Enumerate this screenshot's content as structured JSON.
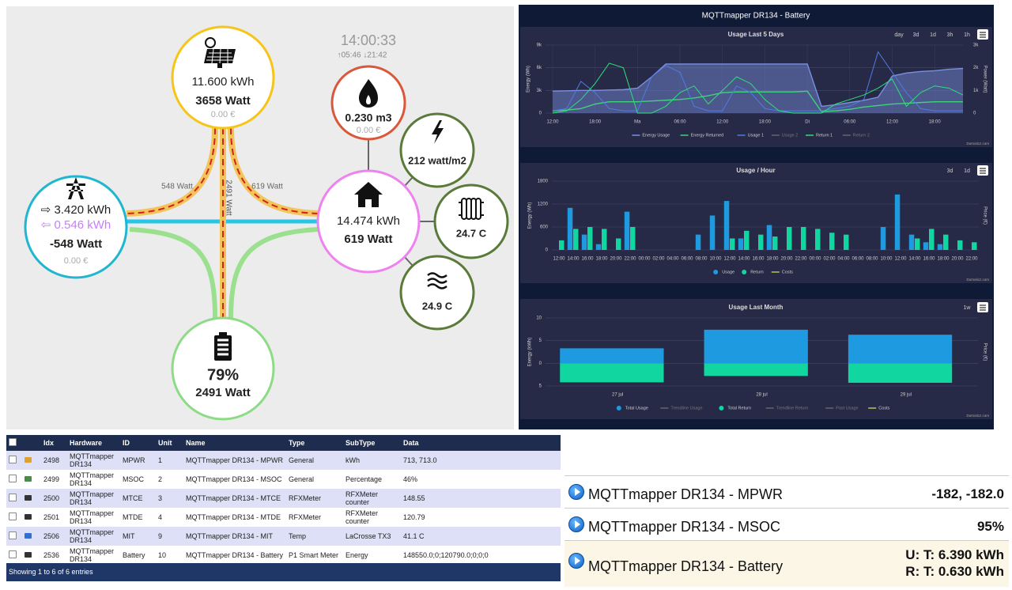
{
  "flow": {
    "time": "14:00:33",
    "sun": "↑05:46 ↓21:42",
    "solar": {
      "energy": "11.600 kWh",
      "power": "3658 Watt",
      "cost": "0.00 €"
    },
    "grid": {
      "import": "⇨ 3.420 kWh",
      "export": "⇦ 0.546 kWh",
      "power": "-548 Watt",
      "cost": "0.00 €"
    },
    "battery": {
      "level": "79%",
      "power": "2491 Watt"
    },
    "home": {
      "energy": "14.474 kWh",
      "power": "619 Watt"
    },
    "gas": {
      "value": "0.230 m3",
      "cost": "0.00 €"
    },
    "radiation": "212 watt/m2",
    "temp1": "24.7 C",
    "temp2": "24.9 C",
    "flows": {
      "grid": "548 Watt",
      "battery": "2491 Watt",
      "home": "619 Watt"
    }
  },
  "charts_title": "MQTTmapper DR134 - Battery",
  "chart_data": [
    {
      "type": "line",
      "title": "Usage Last 5 Days",
      "range_buttons": [
        "day",
        "3d",
        "1d",
        "3h",
        "1h"
      ],
      "y_label": "Energy (Wh)",
      "y2_label": "Power (Watt)",
      "credit": "Domoticz.com",
      "grid": true,
      "x": [
        0,
        2,
        4,
        6,
        8,
        10,
        12,
        14,
        16,
        18,
        20,
        22,
        24,
        26,
        28,
        30,
        32,
        34,
        36,
        38,
        40,
        42,
        44,
        46,
        48,
        50,
        52,
        54,
        56,
        58
      ],
      "xlim": [
        -1,
        58
      ],
      "xticks": [
        {
          "value": 0,
          "label": "12:00"
        },
        {
          "value": 6,
          "label": "18:00"
        },
        {
          "value": 12,
          "label": "Ma"
        },
        {
          "value": 18,
          "label": "06:00"
        },
        {
          "value": 24,
          "label": "12:00"
        },
        {
          "value": 30,
          "label": "18:00"
        },
        {
          "value": 36,
          "label": "Di"
        },
        {
          "value": 42,
          "label": "06:00"
        },
        {
          "value": 48,
          "label": "12:00"
        },
        {
          "value": 54,
          "label": "18:00"
        }
      ],
      "ylim": [
        0,
        9000
      ],
      "yticks": [
        0,
        {
          "value": 3000,
          "label": "3k"
        },
        {
          "value": 6000,
          "label": "6k"
        },
        {
          "value": 9000,
          "label": "9k"
        }
      ],
      "y2lim": [
        0,
        3000
      ],
      "y2ticks": [
        0,
        {
          "value": 1000,
          "label": "1k"
        },
        {
          "value": 2000,
          "label": "2k"
        },
        {
          "value": 3000,
          "label": "3k"
        }
      ],
      "series": [
        {
          "name": "Energy Usage",
          "color": "#7b8fe0",
          "area": true,
          "values": [
            2900,
            2950,
            3000,
            3000,
            3050,
            3100,
            3300,
            4800,
            6500,
            6500,
            6500,
            6500,
            6500,
            6500,
            6500,
            6500,
            6500,
            6500,
            6500,
            900,
            1100,
            1400,
            1700,
            2100,
            4900,
            5300,
            5500,
            5600,
            5800,
            5900
          ]
        },
        {
          "name": "Energy Returned",
          "color": "#3fd27a",
          "values": [
            300,
            400,
            600,
            1200,
            1500,
            1500,
            1500,
            1600,
            1700,
            1800,
            2000,
            2300,
            2700,
            2800,
            2800,
            2800,
            2800,
            2800,
            2900,
            200,
            300,
            500,
            800,
            1000,
            1200,
            1300,
            1400,
            1500,
            1500,
            1500
          ]
        },
        {
          "name": "Usage 1",
          "color": "#4f7be8",
          "axis": "y2",
          "values": [
            100,
            200,
            1400,
            900,
            200,
            100,
            100,
            1600,
            2100,
            1800,
            300,
            100,
            100,
            1200,
            900,
            200,
            100,
            100,
            100,
            100,
            200,
            300,
            600,
            2700,
            1800,
            900,
            200,
            100,
            100,
            100
          ]
        },
        {
          "name": "Usage 2",
          "color": "#777777",
          "hidden": true
        },
        {
          "name": "Return 1",
          "color": "#2ee07a",
          "axis": "y2",
          "values": [
            0,
            100,
            600,
            1300,
            2200,
            2000,
            0,
            0,
            300,
            900,
            1200,
            400,
            1000,
            1600,
            1300,
            600,
            100,
            0,
            0,
            0,
            400,
            600,
            800,
            1100,
            1500,
            300,
            900,
            1200,
            1100,
            800
          ]
        },
        {
          "name": "Return 2",
          "color": "#777777",
          "hidden": true
        }
      ]
    },
    {
      "type": "bar",
      "title": "Usage / Hour",
      "range_buttons": [
        "3d",
        "1d"
      ],
      "y_label": "Energy (Wh)",
      "y2_label": "Price (€)",
      "credit": "Domoticz.com",
      "grid": true,
      "categories": [
        "12:00",
        "14:00",
        "16:00",
        "18:00",
        "20:00",
        "22:00",
        "00:00",
        "02:00",
        "04:00",
        "06:00",
        "08:00",
        "10:00",
        "12:00",
        "14:00",
        "16:00",
        "18:00",
        "20:00",
        "22:00",
        "00:00",
        "02:00",
        "04:00",
        "06:00",
        "08:00",
        "10:00",
        "12:00",
        "14:00",
        "16:00",
        "18:00",
        "20:00",
        "22:00"
      ],
      "ylim": [
        0,
        1800
      ],
      "yticks": [
        0,
        600,
        1200,
        1800
      ],
      "series": [
        {
          "name": "Usage",
          "color": "#1e9be0",
          "values": [
            0,
            1100,
            400,
            150,
            0,
            1000,
            0,
            0,
            0,
            0,
            400,
            900,
            1280,
            300,
            0,
            650,
            0,
            0,
            0,
            0,
            0,
            0,
            0,
            600,
            1450,
            400,
            200,
            150,
            0,
            0
          ]
        },
        {
          "name": "Return",
          "color": "#12d6a0",
          "values": [
            250,
            550,
            600,
            550,
            300,
            600,
            0,
            0,
            0,
            0,
            0,
            0,
            300,
            500,
            400,
            350,
            600,
            600,
            550,
            450,
            400,
            0,
            0,
            0,
            0,
            300,
            550,
            400,
            250,
            200
          ]
        },
        {
          "name": "Costs",
          "color": "#b4c45a",
          "type": "line"
        }
      ]
    },
    {
      "type": "bar",
      "title": "Usage Last Month",
      "range_buttons": [
        "1w"
      ],
      "y_label": "Energy (kWh)",
      "y2_label": "Price (€)",
      "credit": "Domoticz.com",
      "grid": true,
      "stacked": true,
      "categories": [
        "27 jul",
        "28 jul",
        "29 jul"
      ],
      "ylim": [
        -5,
        10
      ],
      "yticks": [
        {
          "value": -5,
          "label": "5"
        },
        0,
        5,
        10
      ],
      "series": [
        {
          "name": "Total Usage",
          "color": "#1e9be0",
          "values": [
            3.3,
            7.4,
            6.3
          ]
        },
        {
          "name": "Trendline Usage",
          "color": "#777777",
          "hidden": true,
          "type": "line"
        },
        {
          "name": "Total Return",
          "color": "#12d6a0",
          "values": [
            -4.2,
            -2.8,
            -4.3
          ]
        },
        {
          "name": "Trendline Return",
          "color": "#777777",
          "hidden": true,
          "type": "line"
        },
        {
          "name": "Past Usage",
          "color": "#777777",
          "hidden": true,
          "type": "line"
        },
        {
          "name": "Costs",
          "color": "#b4c45a",
          "type": "line"
        }
      ]
    }
  ],
  "table": {
    "columns": [
      "Idx",
      "Hardware",
      "ID",
      "Unit",
      "Name",
      "Type",
      "SubType",
      "Data"
    ],
    "rows": [
      [
        "2498",
        "MQTTmapper DR134",
        "MPWR",
        "1",
        "MQTTmapper DR134 - MPWR",
        "General",
        "kWh",
        "713, 713.0"
      ],
      [
        "2499",
        "MQTTmapper DR134",
        "MSOC",
        "2",
        "MQTTmapper DR134 - MSOC",
        "General",
        "Percentage",
        "46%"
      ],
      [
        "2500",
        "MQTTmapper DR134",
        "MTCE",
        "3",
        "MQTTmapper DR134 - MTCE",
        "RFXMeter",
        "RFXMeter counter",
        "148.55"
      ],
      [
        "2501",
        "MQTTmapper DR134",
        "MTDE",
        "4",
        "MQTTmapper DR134 - MTDE",
        "RFXMeter",
        "RFXMeter counter",
        "120.79"
      ],
      [
        "2506",
        "MQTTmapper DR134",
        "MIT",
        "9",
        "MQTTmapper DR134 - MIT",
        "Temp",
        "LaCrosse TX3",
        "41.1 C"
      ],
      [
        "2536",
        "MQTTmapper DR134",
        "Battery",
        "10",
        "MQTTmapper DR134 - Battery",
        "P1 Smart Meter",
        "Energy",
        "148550.0;0;120790.0;0;0;0"
      ]
    ],
    "footer": "Showing 1 to 6 of 6 entries"
  },
  "devices": [
    {
      "name": "MQTTmapper DR134 - MPWR",
      "value": [
        "-182, -182.0"
      ]
    },
    {
      "name": "MQTTmapper DR134 - MSOC",
      "value": [
        "95%"
      ]
    },
    {
      "name": "MQTTmapper DR134 - Battery",
      "value": [
        "U: T: 6.390 kWh",
        "R: T: 0.630 kWh"
      ]
    }
  ]
}
